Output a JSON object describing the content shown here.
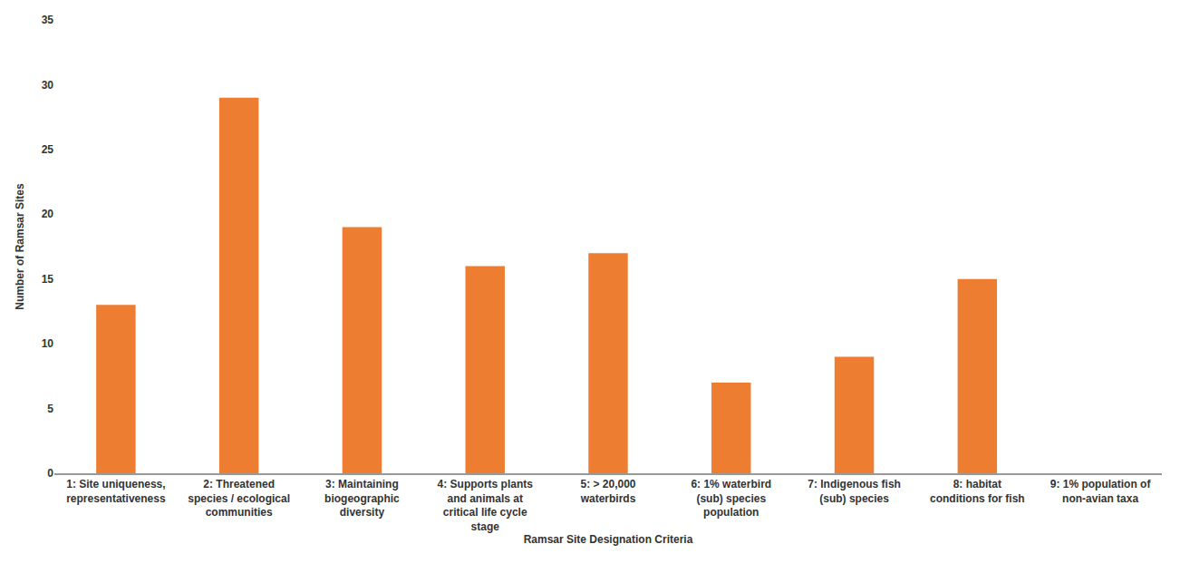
{
  "chart_data": {
    "type": "bar",
    "x_label": "Ramsar Site Designation Criteria",
    "y_label": "Number of Ramsar Sites",
    "categories": [
      "1: Site uniqueness, representativeness",
      "2: Threatened species / ecological communities",
      "3: Maintaining biogeographic diversity",
      "4: Supports plants and animals at critical life cycle stage",
      "5: > 20,000 waterbirds",
      "6: 1% waterbird (sub) species population",
      "7: Indigenous fish (sub) species",
      "8: habitat conditions for fish",
      "9: 1% population of non-avian taxa"
    ],
    "values": [
      13,
      29,
      19,
      16,
      17,
      7,
      9,
      15,
      0
    ],
    "color": "#ed7d31",
    "ylim": [
      0,
      35
    ],
    "yticks": [
      0,
      5,
      10,
      15,
      20,
      25,
      30,
      35
    ],
    "grid": false
  }
}
